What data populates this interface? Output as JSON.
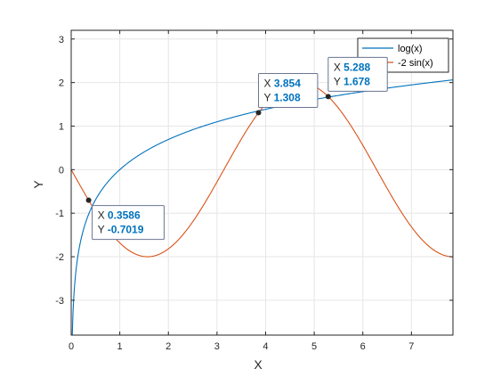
{
  "chart_data": {
    "type": "line",
    "xlabel": "X",
    "ylabel": "Y",
    "xlim": [
      0,
      7.854
    ],
    "ylim": [
      -3.8,
      3.2
    ],
    "xticks": [
      0,
      1,
      2,
      3,
      4,
      5,
      6,
      7
    ],
    "yticks": [
      -3,
      -2,
      -1,
      0,
      1,
      2,
      3
    ],
    "grid": true,
    "legend_position": "top-right",
    "series": [
      {
        "name": "log(x)",
        "function": "log",
        "color": "#0072BD",
        "x": [
          0.022,
          0.05,
          0.1,
          0.2,
          0.3586,
          0.5,
          1,
          1.5,
          2,
          2.5,
          3,
          3.854,
          4.5,
          5.288,
          6,
          7,
          7.854
        ],
        "y": [
          -3.8,
          -3.0,
          -2.303,
          -1.609,
          -1.026,
          -0.693,
          0,
          0.405,
          0.693,
          0.916,
          1.099,
          1.349,
          1.504,
          1.665,
          1.792,
          1.946,
          2.061
        ]
      },
      {
        "name": "-2 sin(x)",
        "function": "neg2sin",
        "color": "#D95319",
        "x": [
          0,
          0.3586,
          0.785,
          1.571,
          2.356,
          3.142,
          3.854,
          4.712,
          5.288,
          6.283,
          7.069,
          7.854
        ],
        "y": [
          0,
          -0.702,
          -1.414,
          -2,
          -1.414,
          0,
          1.308,
          2,
          1.678,
          0,
          -1.414,
          -2
        ]
      }
    ],
    "datatips": [
      {
        "x_label": "X",
        "y_label": "Y",
        "x": "0.3586",
        "y": "-0.7019",
        "xv": 0.3586,
        "yv": -0.7019,
        "placement": "below-right"
      },
      {
        "x_label": "X",
        "y_label": "Y",
        "x": "3.854",
        "y": "1.308",
        "xv": 3.854,
        "yv": 1.308,
        "placement": "above"
      },
      {
        "x_label": "X",
        "y_label": "Y",
        "x": "5.288",
        "y": "1.678",
        "xv": 5.288,
        "yv": 1.678,
        "placement": "above"
      }
    ]
  }
}
